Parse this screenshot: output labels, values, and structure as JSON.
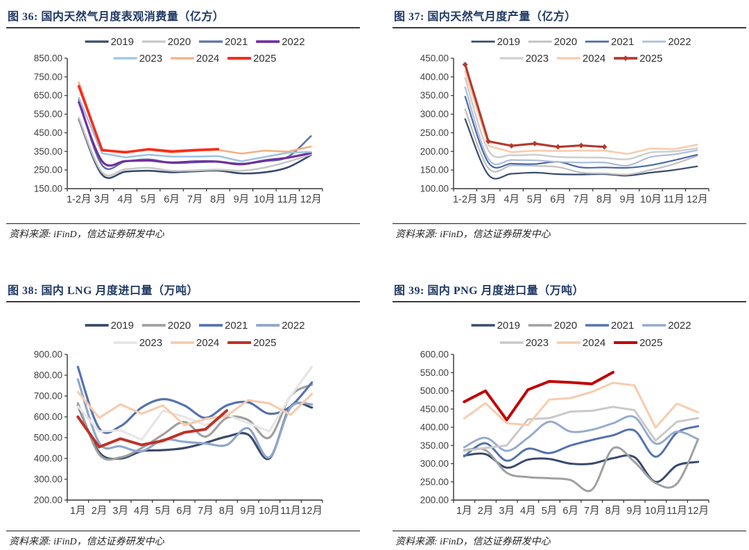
{
  "chart_data": [
    {
      "type": "line",
      "title": "图 36:  国内天然气月度表观消费量（亿方）",
      "source": "资料来源: iFinD，信达证券研发中心",
      "categories": [
        "1-2月",
        "3月",
        "4月",
        "5月",
        "6月",
        "7月",
        "8月",
        "9月",
        "10月",
        "11月",
        "12月"
      ],
      "ylim": [
        150,
        850
      ],
      "ystep": 100,
      "ytick_format": "2dp",
      "grid": false,
      "legend_position": "top-center",
      "legend_rows": [
        [
          "2019",
          "2020",
          "2021",
          "2022"
        ],
        [
          "2023",
          "2024",
          "2025"
        ]
      ],
      "series": [
        {
          "name": "2019",
          "color": "#384A6E",
          "width": 2.6,
          "smooth": true,
          "values": [
            522,
            225,
            241,
            246,
            238,
            243,
            247,
            232,
            238,
            264,
            330
          ]
        },
        {
          "name": "2020",
          "color": "#C7C7C7",
          "width": 2.6,
          "smooth": true,
          "values": [
            530,
            238,
            254,
            262,
            246,
            248,
            252,
            246,
            263,
            294,
            334
          ]
        },
        {
          "name": "2021",
          "color": "#5B74A8",
          "width": 2.6,
          "smooth": true,
          "values": [
            628,
            276,
            296,
            307,
            288,
            291,
            294,
            284,
            297,
            320,
            432
          ]
        },
        {
          "name": "2022",
          "color": "#7030A0",
          "width": 3.2,
          "smooth": true,
          "values": [
            615,
            297,
            298,
            301,
            290,
            296,
            295,
            281,
            301,
            316,
            341
          ]
        },
        {
          "name": "2023",
          "color": "#9DC3E6",
          "width": 2.6,
          "smooth": false,
          "values": [
            638,
            340,
            318,
            333,
            322,
            322,
            325,
            297,
            320,
            343,
            347
          ]
        },
        {
          "name": "2024",
          "color": "#F4B183",
          "width": 2.6,
          "smooth": false,
          "values": [
            720,
            353,
            349,
            358,
            344,
            353,
            358,
            338,
            354,
            349,
            376
          ]
        },
        {
          "name": "2025",
          "color": "#FA2B1A",
          "width": 3.6,
          "smooth": false,
          "values": [
            700,
            357,
            345,
            362,
            350,
            357,
            362
          ]
        }
      ]
    },
    {
      "type": "line",
      "title": "图 37:  国内天然气月度产量（亿方）",
      "source": "资料来源: iFinD，信达证券研发中心",
      "categories": [
        "1-2月",
        "3月",
        "4月",
        "5月",
        "6月",
        "7月",
        "8月",
        "9月",
        "10月",
        "11月",
        "12月"
      ],
      "ylim": [
        100,
        450
      ],
      "ystep": 50,
      "ytick_format": "2dp",
      "grid": false,
      "legend_position": "top-center",
      "legend_rows": [
        [
          "2019",
          "2020",
          "2021",
          "2022"
        ],
        [
          "2023",
          "2024",
          "2025"
        ]
      ],
      "series": [
        {
          "name": "2019",
          "color": "#384A6E",
          "width": 2.2,
          "smooth": true,
          "values": [
            287,
            137,
            140,
            143,
            139,
            138,
            139,
            135,
            143,
            150,
            160
          ]
        },
        {
          "name": "2020",
          "color": "#BFBFBF",
          "width": 2.2,
          "smooth": true,
          "values": [
            313,
            155,
            162,
            161,
            158,
            143,
            141,
            138,
            150,
            166,
            188
          ]
        },
        {
          "name": "2021",
          "color": "#4A69A5",
          "width": 2.2,
          "smooth": true,
          "values": [
            347,
            170,
            167,
            166,
            172,
            157,
            157,
            156,
            163,
            176,
            191
          ]
        },
        {
          "name": "2022",
          "color": "#ADBDD8",
          "width": 2.2,
          "smooth": true,
          "values": [
            372,
            180,
            177,
            176,
            172,
            170,
            170,
            162,
            185,
            192,
            203
          ]
        },
        {
          "name": "2023",
          "color": "#CFCFCF",
          "width": 2.6,
          "smooth": true,
          "values": [
            397,
            203,
            190,
            191,
            185,
            184,
            183,
            179,
            197,
            200,
            208
          ]
        },
        {
          "name": "2024",
          "color": "#F8CBAD",
          "width": 2.6,
          "smooth": false,
          "values": [
            415,
            215,
            198,
            202,
            201,
            202,
            202,
            193,
            208,
            206,
            218
          ]
        },
        {
          "name": "2025",
          "color": "#B43A2E",
          "width": 3.2,
          "smooth": false,
          "marker": "diamond",
          "values": [
            433,
            227,
            215,
            221,
            212,
            216,
            212
          ]
        }
      ]
    },
    {
      "type": "line",
      "title": "图 38:  国内 LNG 月度进口量（万吨）",
      "source": "资料来源: iFinD，信达证券研发中心",
      "categories": [
        "1月",
        "2月",
        "3月",
        "4月",
        "5月",
        "6月",
        "7月",
        "8月",
        "9月",
        "10月",
        "11月",
        "12月"
      ],
      "ylim": [
        200,
        900
      ],
      "ystep": 100,
      "ytick_format": "2dp",
      "grid": false,
      "legend_position": "top-center",
      "legend_rows": [
        [
          "2019",
          "2020",
          "2021",
          "2022"
        ],
        [
          "2023",
          "2024",
          "2025"
        ]
      ],
      "series": [
        {
          "name": "2019",
          "color": "#3B4A6B",
          "width": 3.2,
          "smooth": true,
          "values": [
            655,
            430,
            400,
            435,
            440,
            450,
            475,
            505,
            515,
            400,
            650,
            645
          ]
        },
        {
          "name": "2020",
          "color": "#9FA0A0",
          "width": 3.2,
          "smooth": true,
          "values": [
            665,
            420,
            405,
            450,
            515,
            575,
            505,
            595,
            585,
            500,
            700,
            755
          ]
        },
        {
          "name": "2021",
          "color": "#5572B0",
          "width": 3.2,
          "smooth": true,
          "values": [
            840,
            545,
            555,
            645,
            685,
            655,
            595,
            655,
            670,
            615,
            650,
            765
          ]
        },
        {
          "name": "2022",
          "color": "#8FA6CC",
          "width": 3.2,
          "smooth": true,
          "values": [
            780,
            475,
            458,
            435,
            490,
            480,
            472,
            465,
            545,
            405,
            645,
            660
          ]
        },
        {
          "name": "2023",
          "color": "#E6E6E6",
          "width": 3.2,
          "smooth": false,
          "values": [
            650,
            530,
            535,
            490,
            630,
            600,
            560,
            610,
            570,
            530,
            700,
            840
          ]
        },
        {
          "name": "2024",
          "color": "#F7CBAD",
          "width": 3.2,
          "smooth": false,
          "values": [
            720,
            595,
            660,
            615,
            655,
            560,
            590,
            605,
            680,
            665,
            610,
            710
          ]
        },
        {
          "name": "2025",
          "color": "#BE3227",
          "width": 4,
          "smooth": false,
          "values": [
            600,
            455,
            495,
            465,
            485,
            525,
            540,
            630
          ]
        }
      ]
    },
    {
      "type": "line",
      "title": "图 39:  国内 PNG 月度进口量（万吨）",
      "source": "资料来源: iFinD，信达证券研发中心",
      "categories": [
        "1月",
        "2月",
        "3月",
        "4月",
        "5月",
        "6月",
        "7月",
        "8月",
        "9月",
        "10月",
        "11月",
        "12月"
      ],
      "ylim": [
        200,
        600
      ],
      "ystep": 50,
      "ytick_format": "2dp",
      "grid": false,
      "legend_position": "top-center",
      "legend_rows": [
        [
          "2019",
          "2020",
          "2021",
          "2022"
        ],
        [
          "2023",
          "2024",
          "2025"
        ]
      ],
      "series": [
        {
          "name": "2019",
          "color": "#384A6E",
          "width": 3,
          "smooth": true,
          "values": [
            322,
            326,
            289,
            311,
            313,
            300,
            300,
            315,
            318,
            250,
            295,
            305
          ]
        },
        {
          "name": "2020",
          "color": "#9FA0A0",
          "width": 3,
          "smooth": true,
          "values": [
            337,
            337,
            275,
            263,
            260,
            255,
            228,
            342,
            305,
            247,
            245,
            367
          ]
        },
        {
          "name": "2021",
          "color": "#5572B0",
          "width": 3,
          "smooth": true,
          "values": [
            320,
            356,
            308,
            341,
            329,
            350,
            365,
            378,
            391,
            319,
            385,
            403
          ]
        },
        {
          "name": "2022",
          "color": "#94ABCD",
          "width": 3,
          "smooth": true,
          "values": [
            345,
            371,
            335,
            371,
            415,
            388,
            393,
            411,
            428,
            355,
            388,
            367
          ]
        },
        {
          "name": "2023",
          "color": "#C9C9C9",
          "width": 3,
          "smooth": false,
          "values": [
            335,
            343,
            350,
            422,
            425,
            443,
            445,
            456,
            447,
            363,
            415,
            425
          ]
        },
        {
          "name": "2024",
          "color": "#F8CBAD",
          "width": 3,
          "smooth": false,
          "values": [
            424,
            466,
            411,
            406,
            476,
            480,
            497,
            522,
            515,
            399,
            465,
            441
          ]
        },
        {
          "name": "2025",
          "color": "#C00000",
          "width": 4,
          "smooth": false,
          "values": [
            470,
            500,
            420,
            503,
            526,
            523,
            519,
            551
          ]
        }
      ]
    }
  ]
}
